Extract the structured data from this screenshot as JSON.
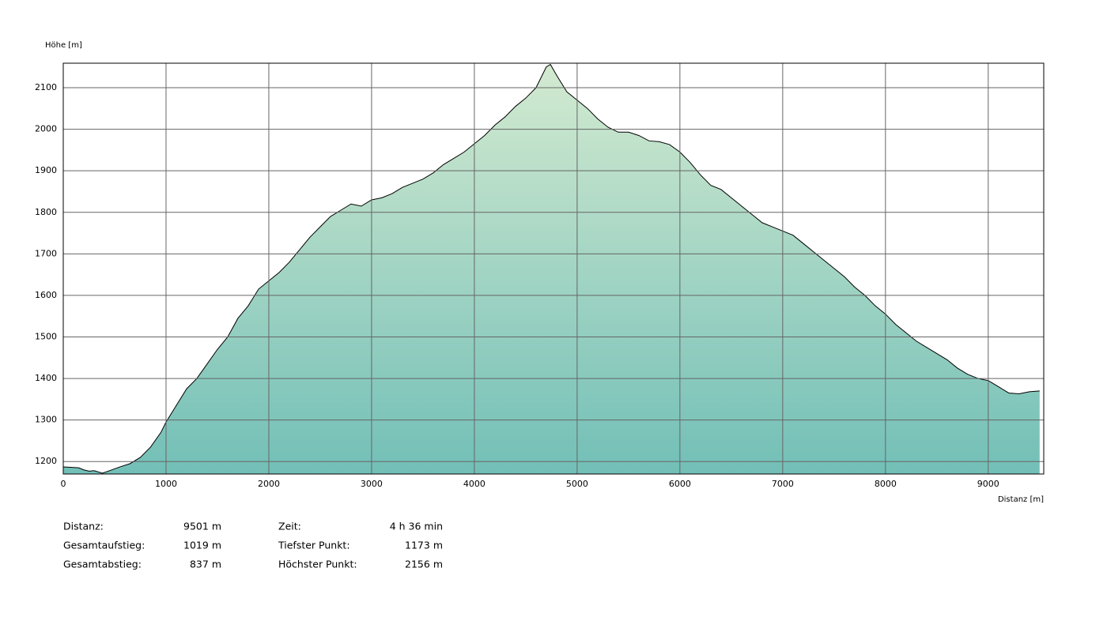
{
  "chart_data": {
    "type": "area",
    "y_label": "Höhe [m]",
    "x_label": "Distanz [m]",
    "x": [
      0,
      150,
      200,
      250,
      300,
      380,
      450,
      550,
      650,
      750,
      850,
      950,
      1000,
      1100,
      1200,
      1300,
      1400,
      1500,
      1600,
      1700,
      1800,
      1900,
      2000,
      2100,
      2200,
      2300,
      2400,
      2500,
      2600,
      2700,
      2800,
      2900,
      3000,
      3100,
      3200,
      3300,
      3400,
      3500,
      3600,
      3700,
      3800,
      3900,
      4000,
      4100,
      4200,
      4300,
      4400,
      4500,
      4600,
      4650,
      4700,
      4740,
      4800,
      4900,
      5000,
      5100,
      5200,
      5300,
      5400,
      5500,
      5600,
      5700,
      5800,
      5900,
      6000,
      6100,
      6200,
      6300,
      6400,
      6500,
      6600,
      6700,
      6800,
      6900,
      7000,
      7100,
      7200,
      7300,
      7400,
      7500,
      7600,
      7700,
      7800,
      7900,
      8000,
      8100,
      8200,
      8300,
      8400,
      8500,
      8600,
      8700,
      8800,
      8900,
      9000,
      9100,
      9200,
      9300,
      9400,
      9500
    ],
    "values": [
      1187,
      1185,
      1180,
      1177,
      1178,
      1172,
      1178,
      1187,
      1195,
      1210,
      1235,
      1270,
      1295,
      1335,
      1375,
      1400,
      1435,
      1470,
      1500,
      1545,
      1575,
      1615,
      1635,
      1655,
      1680,
      1710,
      1740,
      1765,
      1790,
      1805,
      1820,
      1815,
      1830,
      1835,
      1845,
      1860,
      1870,
      1880,
      1895,
      1915,
      1930,
      1945,
      1965,
      1985,
      2010,
      2030,
      2055,
      2075,
      2100,
      2125,
      2150,
      2156,
      2130,
      2090,
      2070,
      2050,
      2025,
      2005,
      1993,
      1993,
      1985,
      1972,
      1970,
      1963,
      1945,
      1920,
      1890,
      1865,
      1855,
      1835,
      1815,
      1795,
      1775,
      1765,
      1755,
      1745,
      1725,
      1705,
      1685,
      1665,
      1645,
      1620,
      1600,
      1575,
      1555,
      1530,
      1510,
      1490,
      1475,
      1460,
      1445,
      1425,
      1410,
      1400,
      1395,
      1380,
      1365,
      1363,
      1368,
      1370
    ],
    "xlim": [
      0,
      9540
    ],
    "ylim": [
      1170,
      2159
    ],
    "xticks": [
      0,
      1000,
      2000,
      3000,
      4000,
      5000,
      6000,
      7000,
      8000,
      9000
    ],
    "yticks": [
      1200,
      1300,
      1400,
      1500,
      1600,
      1700,
      1800,
      1900,
      2000,
      2100
    ],
    "grid": true,
    "line_color": "#000000",
    "fill_gradient": [
      "#d3ead0",
      "#72bfb7"
    ]
  },
  "stats": [
    [
      {
        "label": "Distanz:",
        "value": "9501 m"
      },
      {
        "label": "Zeit:",
        "value": "4 h 36 min"
      }
    ],
    [
      {
        "label": "Gesamtaufstieg:",
        "value": "1019 m"
      },
      {
        "label": "Tiefster Punkt:",
        "value": "1173 m"
      }
    ],
    [
      {
        "label": "Gesamtabstieg:",
        "value": "837 m"
      },
      {
        "label": "Höchster Punkt:",
        "value": "2156 m"
      }
    ]
  ]
}
